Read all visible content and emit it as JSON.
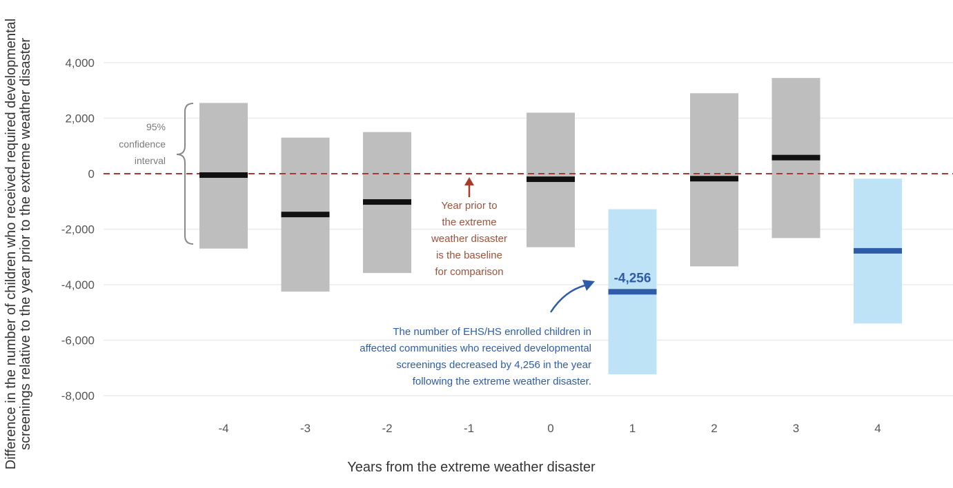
{
  "chart_data": {
    "type": "bar",
    "title": "",
    "xlabel": "Years from the extreme weather disaster",
    "ylabel_lines": [
      "Difference in the number of children who received required developmental",
      "screenings relative to the year prior to the extreme weather disaster"
    ],
    "ylim": [
      -9000,
      4500
    ],
    "yticks": [
      {
        "value": 4000,
        "label": "4,000"
      },
      {
        "value": 2000,
        "label": "2,000"
      },
      {
        "value": 0,
        "label": "0"
      },
      {
        "value": -2000,
        "label": "-2,000"
      },
      {
        "value": -4000,
        "label": "-4,000"
      },
      {
        "value": -6000,
        "label": "-6,000"
      },
      {
        "value": -8000,
        "label": "-8,000"
      }
    ],
    "x_labels": [
      "-4",
      "-3",
      "-2",
      "-1",
      "0",
      "1",
      "2",
      "3",
      "4"
    ],
    "baseline": 0,
    "points": [
      {
        "year": "-4",
        "estimate": -50,
        "ci_low": -2700,
        "ci_high": 2550,
        "significant": false
      },
      {
        "year": "-3",
        "estimate": -1470,
        "ci_low": -4250,
        "ci_high": 1300,
        "significant": false
      },
      {
        "year": "-2",
        "estimate": -1020,
        "ci_low": -3580,
        "ci_high": 1500,
        "significant": false
      },
      {
        "year": "0",
        "estimate": -200,
        "ci_low": -2650,
        "ci_high": 2200,
        "significant": false
      },
      {
        "year": "1",
        "estimate": -4256,
        "ci_low": -7230,
        "ci_high": -1280,
        "significant": true
      },
      {
        "year": "2",
        "estimate": -180,
        "ci_low": -3340,
        "ci_high": 2900,
        "significant": false
      },
      {
        "year": "3",
        "estimate": 580,
        "ci_low": -2320,
        "ci_high": 3450,
        "significant": false
      },
      {
        "year": "4",
        "estimate": -2780,
        "ci_low": -5400,
        "ci_high": -180,
        "significant": true
      }
    ],
    "value_label": {
      "year": "1",
      "text": "-4,256"
    },
    "annotations": {
      "ci_lines": [
        "95%",
        "confidence",
        "interval"
      ],
      "baseline_lines": [
        "Year prior to",
        "the extreme",
        "weather disaster",
        "is the baseline",
        "for comparison"
      ],
      "finding_lines": [
        "The number of EHS/HS enrolled children in",
        "affected communities who received developmental",
        "screenings decreased by 4,256 in the year",
        "following the extreme weather disaster."
      ]
    },
    "colors": {
      "ci_gray": "#bebebe",
      "ci_blue": "#bfe3f6",
      "estimate_black": "#111111",
      "estimate_blue": "#2f5ca8",
      "baseline_red": "#a83a2a",
      "grid": "#ebebeb"
    },
    "grid": true,
    "legend": "none"
  }
}
